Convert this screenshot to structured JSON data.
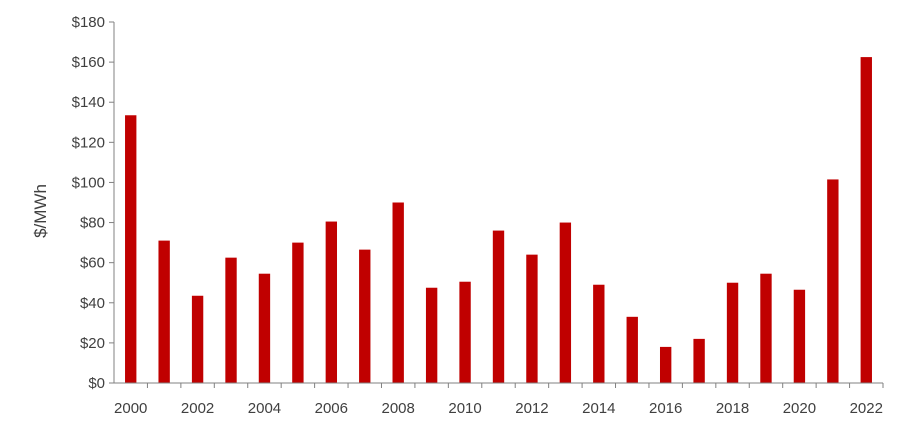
{
  "chart_data": {
    "type": "bar",
    "title": "",
    "xlabel": "",
    "ylabel": "$/MWh",
    "ylim": [
      0,
      180
    ],
    "yticks": [
      0,
      20,
      40,
      60,
      80,
      100,
      120,
      140,
      160,
      180
    ],
    "ytick_labels": [
      "$0",
      "$20",
      "$40",
      "$60",
      "$80",
      "$100",
      "$120",
      "$140",
      "$160",
      "$180"
    ],
    "categories": [
      "2000",
      "2001",
      "2002",
      "2003",
      "2004",
      "2005",
      "2006",
      "2007",
      "2008",
      "2009",
      "2010",
      "2011",
      "2012",
      "2013",
      "2014",
      "2015",
      "2016",
      "2017",
      "2018",
      "2019",
      "2020",
      "2021",
      "2022"
    ],
    "xtick_labels": [
      "2000",
      "2002",
      "2004",
      "2006",
      "2008",
      "2010",
      "2012",
      "2014",
      "2016",
      "2018",
      "2020",
      "2022"
    ],
    "values": [
      133.5,
      71,
      43.5,
      62.5,
      54.5,
      70,
      80.5,
      66.5,
      90,
      47.5,
      50.5,
      76,
      64,
      80,
      49,
      33,
      18,
      22,
      50,
      54.5,
      46.5,
      101.5,
      162.5
    ],
    "bar_color": "#C00000",
    "grid": false,
    "legend": "none"
  }
}
